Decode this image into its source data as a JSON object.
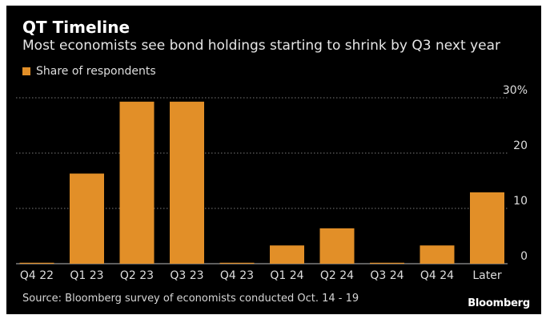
{
  "title": "QT Timeline",
  "subtitle": "Most economists see bond holdings starting to shrink by Q3 next year",
  "legend": {
    "label": "Share of respondents"
  },
  "source": "Source: Bloomberg survey of economists conducted Oct. 14 - 19",
  "brand": "Bloomberg",
  "colors": {
    "bar": "#e28f28",
    "background": "#000000",
    "grid": "#7a7a7a"
  },
  "chart_data": {
    "type": "bar",
    "categories": [
      "Q4 22",
      "Q1 23",
      "Q2 23",
      "Q3 23",
      "Q4 23",
      "Q1 24",
      "Q2 24",
      "Q3 24",
      "Q4 24",
      "Later"
    ],
    "series": [
      {
        "name": "Share of respondents",
        "values": [
          0,
          16.3,
          29.3,
          29.3,
          0,
          3.3,
          6.4,
          0,
          3.3,
          12.9
        ]
      }
    ],
    "ylim": [
      0,
      30
    ],
    "yticks": [
      0,
      10,
      20,
      30
    ],
    "ytick_labels": [
      "0",
      "10",
      "20",
      "30%"
    ],
    "grid": true,
    "legend_position": "top-left"
  }
}
